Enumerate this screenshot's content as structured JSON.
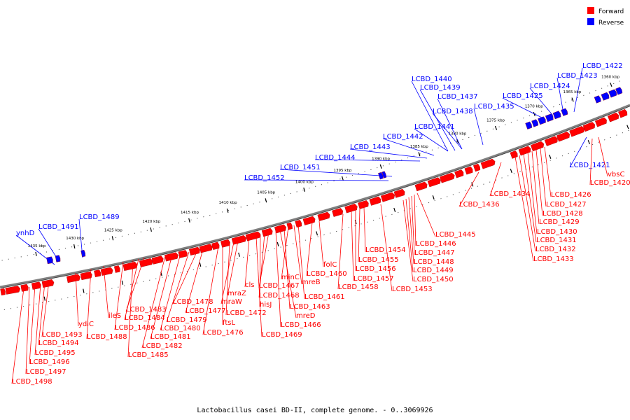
{
  "title": "Lactobacillus casei BD-II, complete genome. - 0..3069926",
  "legend": [
    {
      "label": "Forward",
      "color": "#ff0000"
    },
    {
      "label": "Reverse",
      "color": "#0000ff"
    }
  ],
  "colors": {
    "forward": "#ff0000",
    "reverse": "#0000ff",
    "backbone": "#808080"
  },
  "ticks": [
    "1360 kbp",
    "1365 kbp",
    "1370 kbp",
    "1375 kbp",
    "1380 kbp",
    "1385 kbp",
    "1390 kbp",
    "1395 kbp",
    "1400 kbp",
    "1405 kbp",
    "1410 kbp",
    "1415 kbp",
    "1420 kbp",
    "1425 kbp",
    "1430 kbp",
    "1435 kbp"
  ],
  "reverse_genes": [
    "LCBD_1422",
    "LCBD_1423",
    "LCBD_1424",
    "LCBD_1425",
    "LCBD_1435",
    "LCBD_1438",
    "LCBD_1437",
    "LCBD_1439",
    "LCBD_1440",
    "LCBD_1441",
    "LCBD_1442",
    "LCBD_1443",
    "LCBD_1444",
    "LCBD_1451",
    "LCBD_1452",
    "LCBD_1489",
    "LCBD_1491",
    "ynhD",
    "LCBD_1421"
  ],
  "forward_genes": [
    "vbsC",
    "LCBD_1420",
    "LCBD_1426",
    "LCBD_1427",
    "LCBD_1428",
    "LCBD_1429",
    "LCBD_1430",
    "LCBD_1431",
    "LCBD_1432",
    "LCBD_1433",
    "LCBD_1434",
    "LCBD_1436",
    "LCBD_1445",
    "LCBD_1446",
    "LCBD_1447",
    "LCBD_1448",
    "LCBD_1449",
    "LCBD_1450",
    "LCBD_1453",
    "LCBD_1454",
    "LCBD_1455",
    "LCBD_1456",
    "LCBD_1457",
    "LCBD_1458",
    "folC",
    "LCBD_1460",
    "LCBD_1461",
    "mreB",
    "minC",
    "LCBD_1463",
    "mreD",
    "LCBD_1466",
    "LCBD_1467",
    "LCBD_1468",
    "hisJ",
    "LCBD_1469",
    "cls",
    "mraZ",
    "mraW",
    "LCBD_1472",
    "ftsL",
    "LCBD_1476",
    "LCBD_1477",
    "LCBD_1478",
    "LCBD_1479",
    "LCBD_1480",
    "LCBD_1481",
    "LCBD_1482",
    "LCBD_1483",
    "LCBD_1484",
    "LCBD_1485",
    "LCBD_1486",
    "ileS",
    "LCBD_1488",
    "ydiC",
    "LCBD_1493",
    "LCBD_1494",
    "LCBD_1495",
    "LCBD_1496",
    "LCBD_1497",
    "LCBD_1498"
  ]
}
